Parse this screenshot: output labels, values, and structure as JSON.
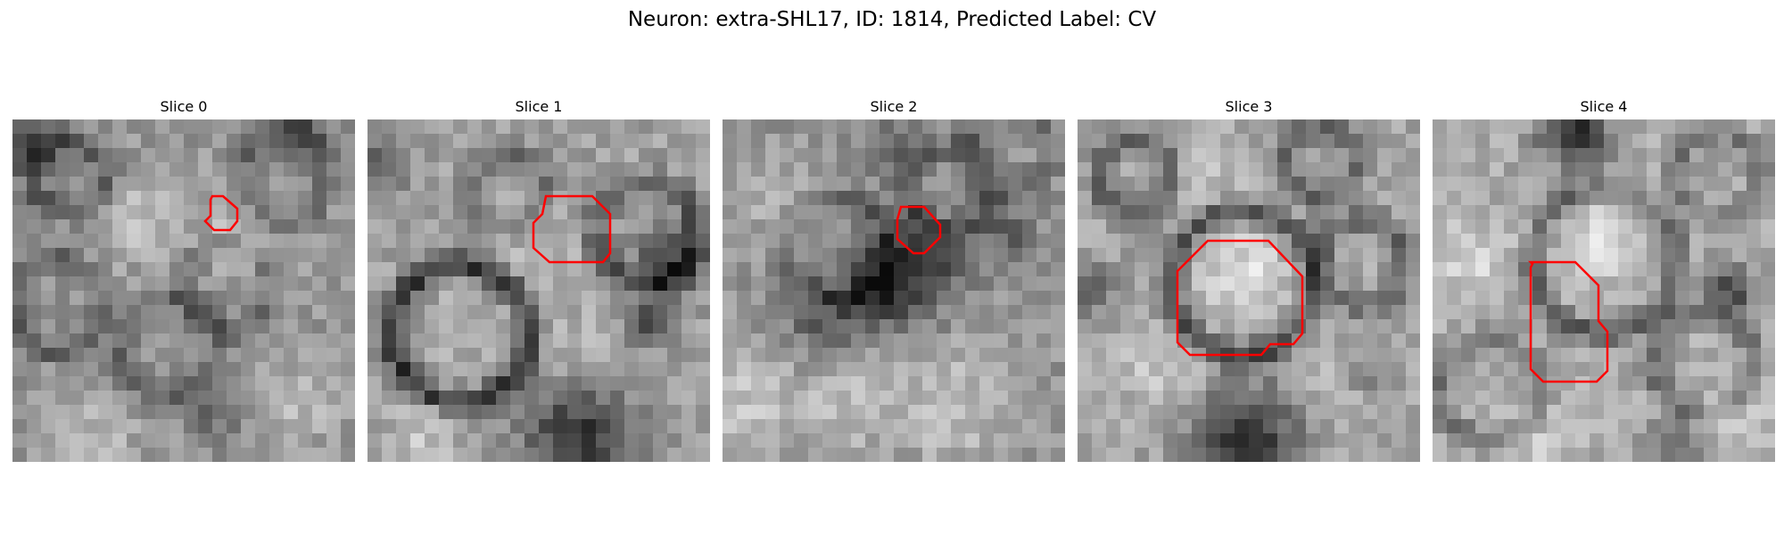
{
  "figure": {
    "suptitle": "Neuron: extra-SHL17, ID: 1814, Predicted Label: CV",
    "contour_color": "#ff0000",
    "colormap": "grayscale"
  },
  "slices": [
    {
      "title": "Slice 0"
    },
    {
      "title": "Slice 1"
    },
    {
      "title": "Slice 2"
    },
    {
      "title": "Slice 3"
    },
    {
      "title": "Slice 4"
    }
  ]
}
